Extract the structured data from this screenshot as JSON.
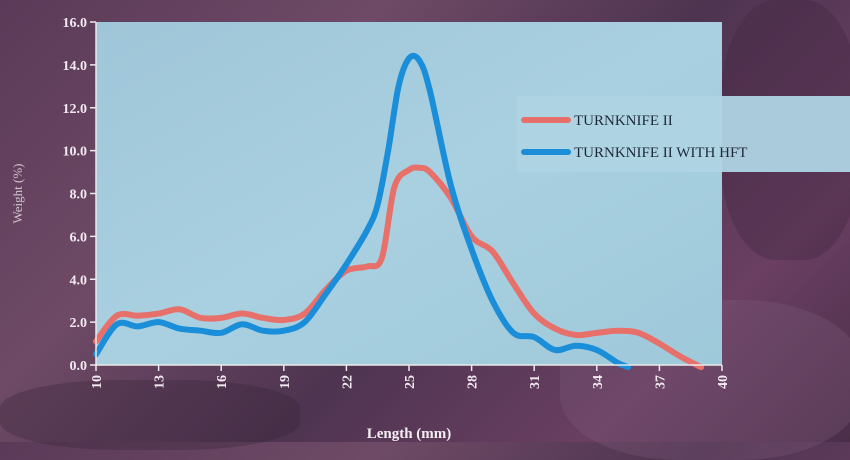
{
  "chart_data": {
    "type": "line",
    "xlabel": "Length (mm)",
    "ylabel": "Weight (%)",
    "xlim": [
      10,
      40
    ],
    "ylim": [
      0,
      16
    ],
    "xticks": [
      "10",
      "13",
      "16",
      "19",
      "22",
      "25",
      "28",
      "31",
      "34",
      "37",
      "40"
    ],
    "yticks": [
      "0.0",
      "2.0",
      "4.0",
      "6.0",
      "8.0",
      "10.0",
      "12.0",
      "14.0",
      "16.0"
    ],
    "legend_position": "right",
    "grid": false,
    "series": [
      {
        "name": "TURNKNIFE II",
        "color": "#e8706a",
        "x": [
          10,
          11,
          12,
          13,
          14,
          15,
          16,
          17,
          18,
          19,
          20,
          21,
          22,
          23,
          23.7,
          24.3,
          25,
          25.5,
          26,
          27,
          28,
          29,
          30,
          31,
          32,
          33,
          34,
          35,
          36,
          37,
          38,
          39
        ],
        "y": [
          1.1,
          2.3,
          2.3,
          2.4,
          2.6,
          2.2,
          2.2,
          2.4,
          2.2,
          2.1,
          2.4,
          3.5,
          4.4,
          4.6,
          5.0,
          8.3,
          9.1,
          9.2,
          9.0,
          7.8,
          6.0,
          5.3,
          3.8,
          2.4,
          1.7,
          1.4,
          1.5,
          1.6,
          1.5,
          1.0,
          0.4,
          -0.1
        ]
      },
      {
        "name": "TURNKNIFE II WITH HFT",
        "color": "#1a8ed8",
        "x": [
          10,
          11,
          12,
          13,
          14,
          15,
          16,
          17,
          18,
          19,
          20,
          21,
          22,
          23,
          23.5,
          24,
          24.5,
          25,
          25.5,
          26,
          27,
          28,
          29,
          30,
          31,
          32,
          33,
          34,
          35,
          35.5
        ],
        "y": [
          0.5,
          1.9,
          1.8,
          2.0,
          1.7,
          1.6,
          1.5,
          1.9,
          1.6,
          1.6,
          2.0,
          3.3,
          4.7,
          6.3,
          7.5,
          10.0,
          13.0,
          14.3,
          14.2,
          12.8,
          8.4,
          5.4,
          3.0,
          1.5,
          1.3,
          0.7,
          0.9,
          0.7,
          0.1,
          -0.1
        ]
      }
    ]
  }
}
